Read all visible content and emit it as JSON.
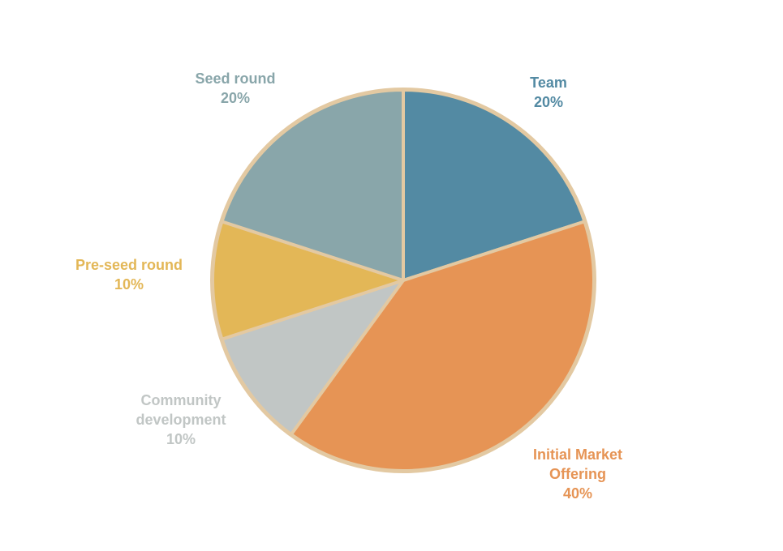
{
  "chart_data": {
    "type": "pie",
    "title": "",
    "slices": [
      {
        "name": "Team",
        "value": 20,
        "label_lines": [
          "Team",
          "20%"
        ],
        "color": "#538aa3"
      },
      {
        "name": "Initial Market Offering",
        "value": 40,
        "label_lines": [
          "Initial Market",
          "Offering",
          "40%"
        ],
        "color": "#e69455"
      },
      {
        "name": "Community development",
        "value": 10,
        "label_lines": [
          "Community",
          "development",
          "10%"
        ],
        "color": "#c1c6c5"
      },
      {
        "name": "Pre-seed round",
        "value": 10,
        "label_lines": [
          "Pre-seed round",
          "10%"
        ],
        "color": "#e3b757"
      },
      {
        "name": "Seed round",
        "value": 20,
        "label_lines": [
          "Seed round",
          "20%"
        ],
        "color": "#89a6aa"
      }
    ],
    "start_angle_deg": 0,
    "direction": "clockwise",
    "legend": "none",
    "border_color": "#e3c9a2"
  }
}
